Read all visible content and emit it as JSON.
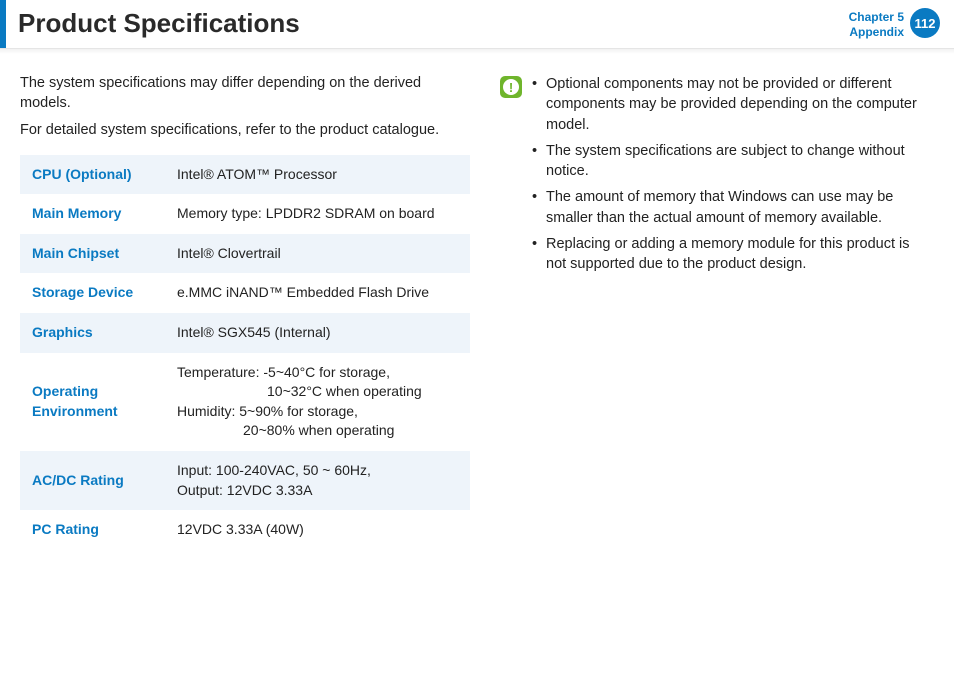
{
  "header": {
    "title": "Product Specifications",
    "chapter_line1": "Chapter 5",
    "chapter_line2": "Appendix",
    "page_number": "112"
  },
  "intro": {
    "p1": "The system specifications may differ depending on the derived models.",
    "p2": "For detailed system specifications, refer to the product catalogue."
  },
  "spec_table": {
    "rows": [
      {
        "label": "CPU (Optional)",
        "value": "Intel® ATOM™ Processor"
      },
      {
        "label": "Main Memory",
        "value": "Memory type: LPDDR2 SDRAM on board"
      },
      {
        "label": "Main Chipset",
        "value": "Intel® Clovertrail"
      },
      {
        "label": "Storage Device",
        "value": "e.MMC iNAND™ Embedded Flash Drive"
      },
      {
        "label": "Graphics",
        "value": "Intel® SGX545 (Internal)"
      },
      {
        "label": "Operating Environment",
        "value_lines": [
          "Temperature: -5~40°C for storage,",
          "10~32°C when operating",
          "Humidity: 5~90% for storage,",
          "20~80% when operating"
        ]
      },
      {
        "label": "AC/DC Rating",
        "value_lines": [
          "Input: 100-240VAC, 50 ~ 60Hz,",
          "Output: 12VDC 3.33A"
        ]
      },
      {
        "label": "PC Rating",
        "value": "12VDC 3.33A (40W)"
      }
    ]
  },
  "notes": {
    "icon_glyph": "!",
    "items": [
      "Optional components may not be provided or different components may be provided depending on the computer model.",
      "The system specifications are subject to change without notice.",
      "The amount of memory that Windows can use may be smaller than the actual amount of memory available.",
      "Replacing or adding a memory module for this product is not supported due to the product design."
    ]
  },
  "colors": {
    "accent": "#0a7ac2",
    "table_row_alt": "#eef4fa",
    "note_icon_bg": "#6fb52c",
    "text": "#222222"
  }
}
